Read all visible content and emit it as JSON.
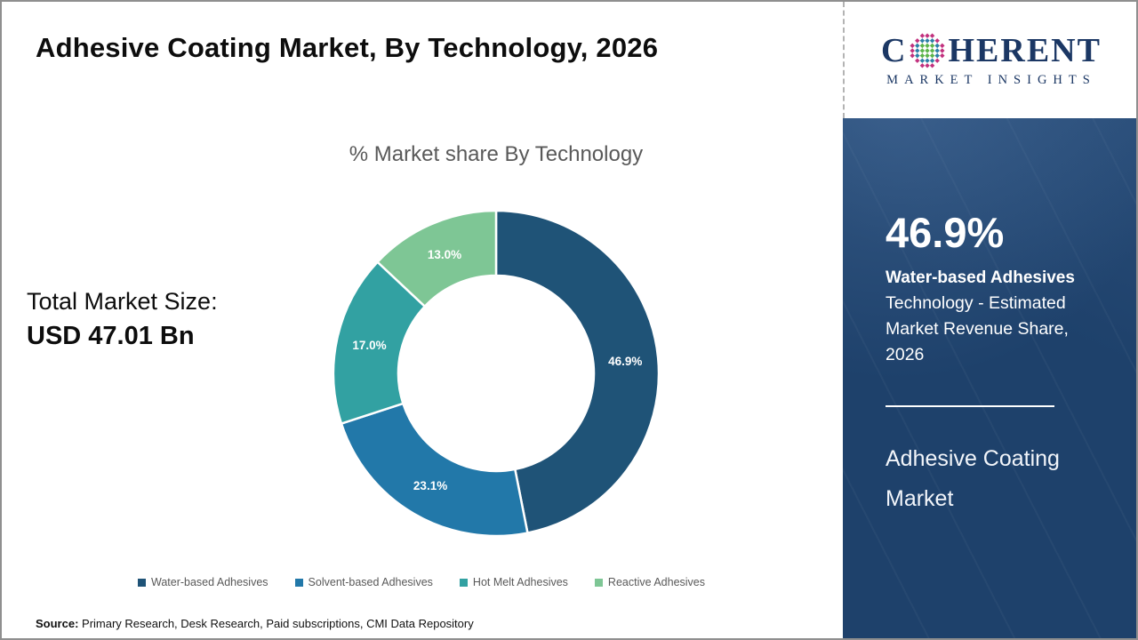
{
  "header": {
    "title": "Adhesive Coating Market, By Technology, 2026"
  },
  "logo": {
    "word_prefix": "C",
    "word_suffix": "HERENT",
    "line2": "MARKET INSIGHTS",
    "navy": "#1b3764",
    "globe_colors": {
      "inner": "#5cb54b",
      "mid": "#2d7fa8",
      "outer": "#c2317e"
    }
  },
  "chart_data": {
    "type": "pie",
    "donut": true,
    "title": "% Market share By Technology",
    "categories": [
      "Water-based Adhesives",
      "Solvent-based Adhesives",
      "Hot Melt Adhesives",
      "Reactive Adhesives"
    ],
    "values": [
      46.9,
      23.1,
      17.0,
      13.0
    ],
    "labels": [
      "46.9%",
      "23.1%",
      "17.0%",
      "13.0%"
    ],
    "colors": [
      "#1f5377",
      "#2278a9",
      "#32a1a2",
      "#7ec695"
    ],
    "start_angle_deg": 0,
    "direction": "clockwise",
    "legend_position": "bottom"
  },
  "market_size": {
    "label": "Total Market Size:",
    "value": "USD 47.01 Bn"
  },
  "sidebar": {
    "highlight_value": "46.9%",
    "highlight_label": "Water-based Adhesives",
    "highlight_desc": "Technology - Estimated Market Revenue Share, 2026",
    "panel_title": "Adhesive Coating Market",
    "background": "#1e416b"
  },
  "source": {
    "label": "Source:",
    "text": " Primary Research, Desk Research, Paid subscriptions, CMI Data Repository"
  }
}
